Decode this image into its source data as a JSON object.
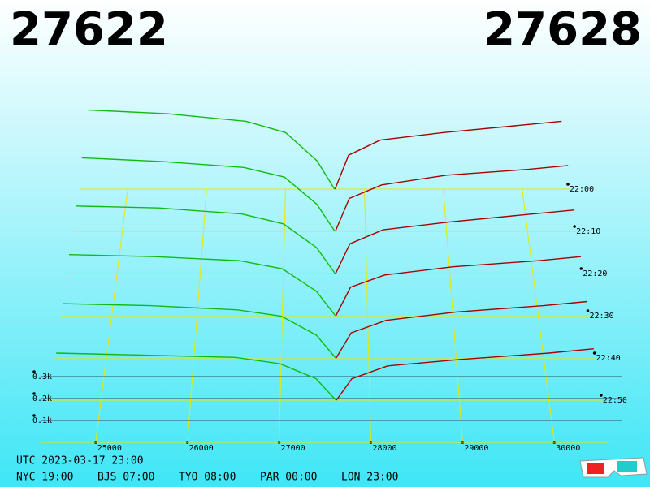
{
  "chart_data": {
    "type": "depth3d",
    "best_bid": 27622,
    "best_ask": 27628,
    "bid_color": "#11bb11",
    "ask_color": "#aa0000",
    "xlim": [
      24400,
      30600
    ],
    "xticks": [
      25000,
      26000,
      27000,
      28000,
      29000,
      30000
    ],
    "tlim": [
      1320,
      1380
    ],
    "tticks": [
      {
        "value": 1320,
        "label": "22:00"
      },
      {
        "value": 1330,
        "label": "22:10"
      },
      {
        "value": 1340,
        "label": "22:20"
      },
      {
        "value": 1350,
        "label": "22:30"
      },
      {
        "value": 1360,
        "label": "22:40"
      },
      {
        "value": 1370,
        "label": "22:50"
      }
    ],
    "zticks": [
      {
        "value": 100,
        "label": "0.1k"
      },
      {
        "value": 200,
        "label": "0.2k"
      },
      {
        "value": 300,
        "label": "0.3k"
      }
    ],
    "bid_prices": [
      24500,
      25500,
      26500,
      27000,
      27400,
      27622
    ],
    "ask_prices": [
      27628,
      27800,
      28200,
      29000,
      30000,
      30500
    ],
    "snapshots": [
      {
        "t": 1320,
        "bids": [
          420,
          400,
          360,
          300,
          150,
          0
        ],
        "asks": [
          0,
          180,
          260,
          300,
          340,
          360
        ]
      },
      {
        "t": 1330,
        "bids": [
          380,
          360,
          330,
          280,
          140,
          0
        ],
        "asks": [
          0,
          170,
          240,
          290,
          320,
          340
        ]
      },
      {
        "t": 1340,
        "bids": [
          340,
          330,
          300,
          250,
          130,
          0
        ],
        "asks": [
          0,
          150,
          220,
          260,
          300,
          320
        ]
      },
      {
        "t": 1350,
        "bids": [
          300,
          290,
          270,
          230,
          120,
          0
        ],
        "asks": [
          0,
          140,
          200,
          240,
          270,
          290
        ]
      },
      {
        "t": 1360,
        "bids": [
          260,
          250,
          230,
          200,
          110,
          0
        ],
        "asks": [
          0,
          120,
          180,
          220,
          250,
          270
        ]
      },
      {
        "t": 1370,
        "bids": [
          220,
          210,
          200,
          170,
          100,
          0
        ],
        "asks": [
          0,
          100,
          160,
          190,
          220,
          240
        ]
      }
    ],
    "utc": "UTC 2023-03-17 23:00",
    "clocks": [
      "NYC 19:00",
      "BJS 07:00",
      "TYO 08:00",
      "PAR 00:00",
      "LON 23:00"
    ]
  }
}
